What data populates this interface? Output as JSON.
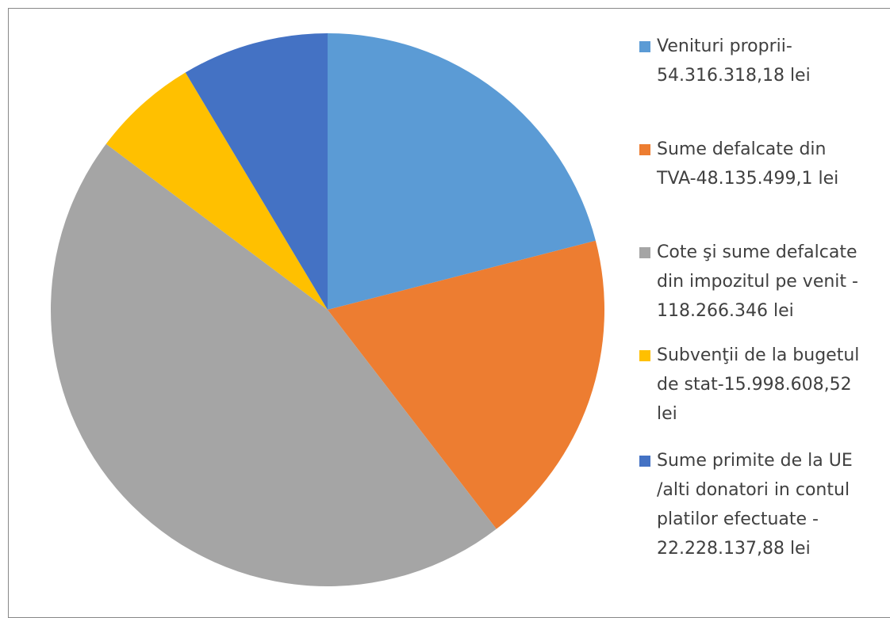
{
  "chart_data": {
    "type": "pie",
    "categories": [
      "Venituri proprii-54.316.318,18 lei",
      "Sume defalcate din TVA-48.135.499,1 lei",
      "Cote şi sume defalcate din impozitul pe venit - 118.266.346 lei",
      "Subvenţii de la bugetul de stat-15.998.608,52 lei",
      "Sume primite de la UE /alti donatori in contul platilor efectuate - 22.228.137,88 lei"
    ],
    "values": [
      54316318.18,
      48135499.1,
      118266346,
      15998608.52,
      22228137.88
    ],
    "colors": [
      "#5b9bd5",
      "#ed7d31",
      "#a5a5a5",
      "#ffc000",
      "#4472c4"
    ],
    "legend": "right"
  }
}
